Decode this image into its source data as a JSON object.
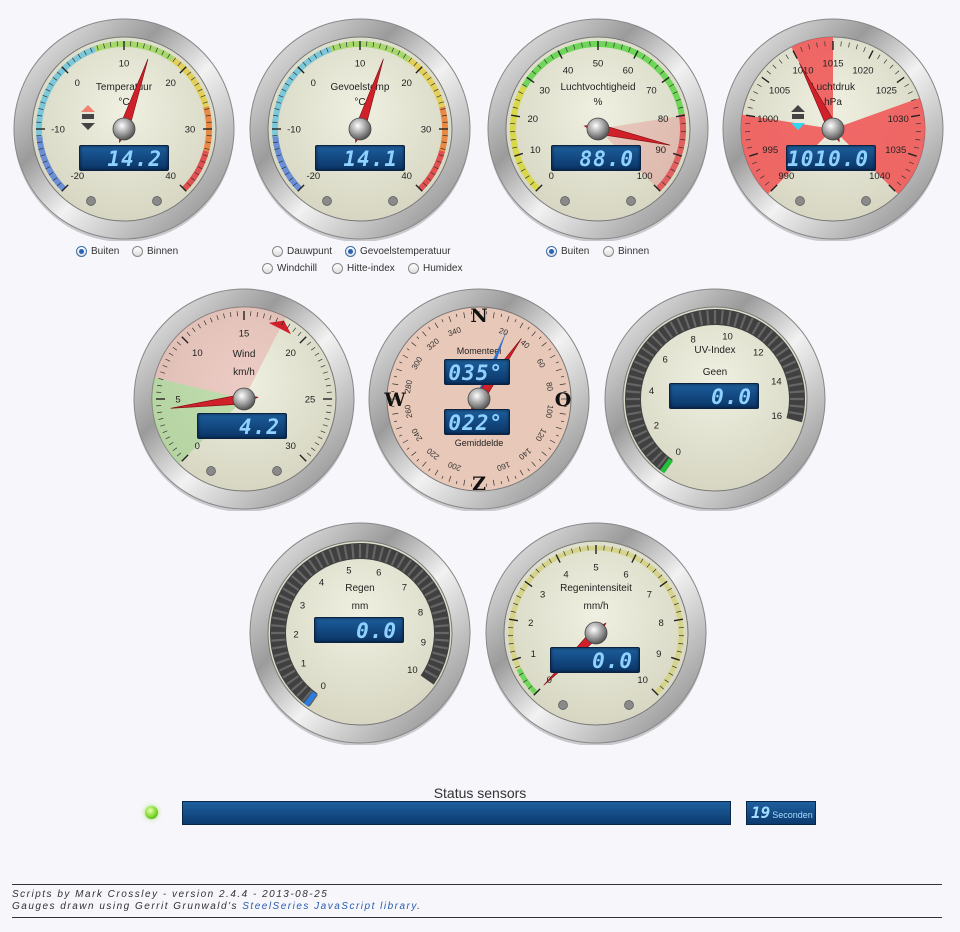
{
  "gauges": {
    "temperature": {
      "title": "Temperatuur",
      "unit": "°C",
      "lcd": "14.2",
      "value": 14.2,
      "ticks": [
        "-20",
        "-10",
        "0",
        "10",
        "20",
        "30",
        "40"
      ],
      "trend": "rising"
    },
    "feels": {
      "title": "Gevoelstemp",
      "unit": "°C",
      "lcd": "14.1",
      "value": 14.1,
      "ticks": [
        "-20",
        "-10",
        "0",
        "10",
        "20",
        "30",
        "40"
      ]
    },
    "humidity": {
      "title": "Luchtvochtigheid",
      "unit": "%",
      "lcd": "88.0",
      "value": 88.0,
      "ticks": [
        "0",
        "10",
        "20",
        "30",
        "40",
        "50",
        "60",
        "70",
        "80",
        "90",
        "100"
      ]
    },
    "pressure": {
      "title": "Luchtdruk",
      "unit": "hPa",
      "lcd": "1010.0",
      "value": 1010.0,
      "ticks": [
        "990",
        "995",
        "1000",
        "1005",
        "1010",
        "1015",
        "1020",
        "1025",
        "1030",
        "1035",
        "1040"
      ],
      "trend": "falling"
    },
    "wind": {
      "title": "Wind",
      "unit": "km/h",
      "lcd": "4.2",
      "value": 4.2,
      "ticks": [
        "0",
        "5",
        "10",
        "15",
        "20",
        "25",
        "30"
      ]
    },
    "direction": {
      "label_top": "Momenteel",
      "lcd_top": "035°",
      "lcd_bottom": "022°",
      "label_bottom": "Gemiddelde",
      "current_deg": 35,
      "average_deg": 22,
      "cardinals": [
        "N",
        "O",
        "Z",
        "W"
      ],
      "degree_ticks": [
        "20",
        "40",
        "60",
        "80",
        "100",
        "120",
        "140",
        "160",
        "200",
        "220",
        "240",
        "260",
        "280",
        "300",
        "320",
        "340"
      ]
    },
    "uv": {
      "title": "UV-Index",
      "subtitle": "Geen",
      "lcd": "0.0",
      "value": 0.0,
      "ticks": [
        "0",
        "2",
        "4",
        "6",
        "8",
        "10",
        "12",
        "14",
        "16"
      ]
    },
    "rain": {
      "title": "Regen",
      "unit": "mm",
      "lcd": "0.0",
      "value": 0.0,
      "ticks": [
        "0",
        "1",
        "2",
        "3",
        "4",
        "5",
        "6",
        "7",
        "8",
        "9",
        "10"
      ]
    },
    "rainrate": {
      "title": "Regenintensiteit",
      "unit": "mm/h",
      "lcd": "0.0",
      "value": 0.0,
      "ticks": [
        "0",
        "1",
        "2",
        "3",
        "4",
        "5",
        "6",
        "7",
        "8",
        "9",
        "10"
      ]
    }
  },
  "radios": {
    "temp_outside": "Buiten",
    "temp_inside": "Binnen",
    "dewpoint": "Dauwpunt",
    "feels_like": "Gevoelstemperatuur",
    "windchill": "Windchill",
    "heat_index": "Hitte-index",
    "humidex": "Humidex",
    "hum_outside": "Buiten",
    "hum_inside": "Binnen"
  },
  "status": {
    "title": "Status sensors",
    "timer_value": "19",
    "timer_unit": "Seconden"
  },
  "footer": {
    "line1": "Scripts by Mark Crossley - version 2.4.4 - 2013-08-25",
    "line2_prefix": "Gauges drawn using Gerrit Grunwald's ",
    "line2_link": "SteelSeries JavaScript library",
    "line2_suffix": "."
  },
  "colors": {
    "lcd": "#0d3e73",
    "lcd_text": "#8fd2ff",
    "needle": "#d0202a",
    "face": "#e6e6d4"
  }
}
